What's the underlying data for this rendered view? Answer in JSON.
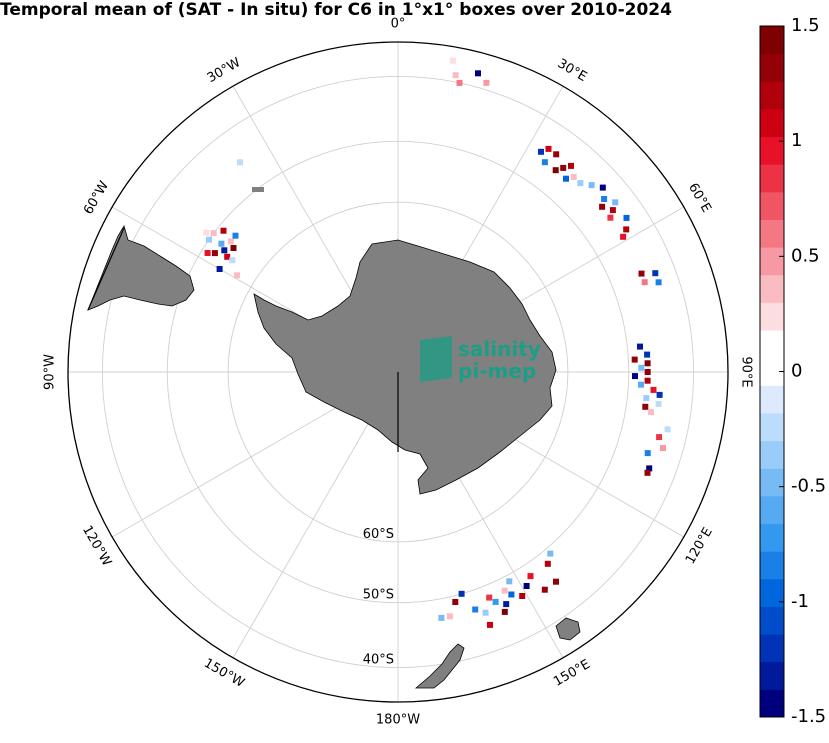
{
  "title": "Temporal mean of (SAT - In situ) for C6 in 1°x1° boxes over 2010-2024",
  "map": {
    "projection": "south-polar-stereographic",
    "outer_latitude": -35,
    "longitude_labels": [
      {
        "lon": 0,
        "text": "0°"
      },
      {
        "lon": 30,
        "text": "30°E"
      },
      {
        "lon": 60,
        "text": "60°E"
      },
      {
        "lon": 90,
        "text": "90°E"
      },
      {
        "lon": 120,
        "text": "120°E"
      },
      {
        "lon": 150,
        "text": "150°E"
      },
      {
        "lon": 180,
        "text": "180°W"
      },
      {
        "lon": -150,
        "text": "150°W"
      },
      {
        "lon": -120,
        "text": "120°W"
      },
      {
        "lon": -90,
        "text": "90°W"
      },
      {
        "lon": -60,
        "text": "60°W"
      },
      {
        "lon": -30,
        "text": "30°W"
      }
    ],
    "latitude_labels": [
      {
        "lat": -60,
        "text": "60°S"
      },
      {
        "lat": -50,
        "text": "50°S"
      },
      {
        "lat": -40,
        "text": "40°S"
      }
    ],
    "land_color": "#808080",
    "grid_color": "#d0d0d0"
  },
  "logo": {
    "line1": "salinity",
    "line2": "pi-mep",
    "color": "#1a9e86"
  },
  "colorbar": {
    "min": -1.5,
    "max": 1.5,
    "ticks": [
      {
        "value": 1.5,
        "label": "1.5"
      },
      {
        "value": 1,
        "label": "1"
      },
      {
        "value": 0.5,
        "label": "0.5"
      },
      {
        "value": 0,
        "label": "0"
      },
      {
        "value": -0.5,
        "label": "-0.5"
      },
      {
        "value": -1,
        "label": "-1"
      },
      {
        "value": -1.5,
        "label": "-1.5"
      }
    ],
    "colors": [
      "#00007f",
      "#001a9b",
      "#0033b5",
      "#004dcc",
      "#0066dd",
      "#1a80e8",
      "#3399ee",
      "#55aaf2",
      "#77bbf5",
      "#99ccf8",
      "#bbdcfa",
      "#dde9fc",
      "#ffffff",
      "#ffffff",
      "#fcdde0",
      "#fabbc1",
      "#f799a2",
      "#f47783",
      "#f05564",
      "#ec3345",
      "#e8112a",
      "#cc0011",
      "#b0000b",
      "#940008",
      "#7f0000"
    ]
  },
  "chart_data": {
    "type": "heatmap",
    "title": "Temporal mean of (SAT - In situ) for C6 in 1°x1° boxes over 2010-2024",
    "value_range": [
      -1.5,
      1.5
    ],
    "points": [
      {
        "lon": -56,
        "lat": -54,
        "v": 1.1
      },
      {
        "lon": -55,
        "lat": -53,
        "v": -1.3
      },
      {
        "lon": -57,
        "lat": -52,
        "v": 1.3
      },
      {
        "lon": -58,
        "lat": -51,
        "v": 0.9
      },
      {
        "lon": -54,
        "lat": -52,
        "v": -0.6
      },
      {
        "lon": -53,
        "lat": -54,
        "v": 1.4
      },
      {
        "lon": -56,
        "lat": -55,
        "v": -0.3
      },
      {
        "lon": -52,
        "lat": -53,
        "v": 0.4
      },
      {
        "lon": -51,
        "lat": -51,
        "v": 1.2
      },
      {
        "lon": -55,
        "lat": -50,
        "v": -0.4
      },
      {
        "lon": -53,
        "lat": -50,
        "v": 0.3
      },
      {
        "lon": -50,
        "lat": -53,
        "v": -0.9
      },
      {
        "lon": -54,
        "lat": -49,
        "v": 0.2
      },
      {
        "lon": -60,
        "lat": -54,
        "v": -1.3
      },
      {
        "lon": -59,
        "lat": -57,
        "v": 0.4
      },
      {
        "lon": -37,
        "lat": -45,
        "v": -0.3
      },
      {
        "lon": 11,
        "lat": -39,
        "v": 0.3
      },
      {
        "lon": 12,
        "lat": -40,
        "v": 0.6
      },
      {
        "lon": 15,
        "lat": -38,
        "v": -1.4
      },
      {
        "lon": 17,
        "lat": -39,
        "v": 0.5
      },
      {
        "lon": 10,
        "lat": -37,
        "v": 0.2
      },
      {
        "lon": 33,
        "lat": -45,
        "v": -1.2
      },
      {
        "lon": 34,
        "lat": -44,
        "v": 1.1
      },
      {
        "lon": 35,
        "lat": -46,
        "v": -0.8
      },
      {
        "lon": 36,
        "lat": -44,
        "v": 1.3
      },
      {
        "lon": 38,
        "lat": -46,
        "v": 1.4
      },
      {
        "lon": 39,
        "lat": -45,
        "v": 1.3
      },
      {
        "lon": 40,
        "lat": -44,
        "v": 1.2
      },
      {
        "lon": 41,
        "lat": -46,
        "v": -1.0
      },
      {
        "lon": 42,
        "lat": -45,
        "v": 0.3
      },
      {
        "lon": 44,
        "lat": -45,
        "v": -0.4
      },
      {
        "lon": 46,
        "lat": -44,
        "v": -0.5
      },
      {
        "lon": 48,
        "lat": -43,
        "v": -1.4
      },
      {
        "lon": 50,
        "lat": -44,
        "v": -0.9
      },
      {
        "lon": 51,
        "lat": -45,
        "v": 1.3
      },
      {
        "lon": 53,
        "lat": -44,
        "v": 1.2
      },
      {
        "lon": 54,
        "lat": -45,
        "v": 0.8
      },
      {
        "lon": 52,
        "lat": -43,
        "v": -0.5
      },
      {
        "lon": 56,
        "lat": -43,
        "v": -1.0
      },
      {
        "lon": 58,
        "lat": -44,
        "v": 1.2
      },
      {
        "lon": 59,
        "lat": -45,
        "v": 0.9
      },
      {
        "lon": 68,
        "lat": -45,
        "v": 1.3
      },
      {
        "lon": 69,
        "lat": -43,
        "v": -1.2
      },
      {
        "lon": 70,
        "lat": -45,
        "v": 0.6
      },
      {
        "lon": 71,
        "lat": -43,
        "v": -0.8
      },
      {
        "lon": 84,
        "lat": -48,
        "v": -1.3
      },
      {
        "lon": 86,
        "lat": -47,
        "v": -1.2
      },
      {
        "lon": 87,
        "lat": -49,
        "v": 1.3
      },
      {
        "lon": 88,
        "lat": -47,
        "v": 1.4
      },
      {
        "lon": 89,
        "lat": -48,
        "v": -0.5
      },
      {
        "lon": 90,
        "lat": -47,
        "v": 1.3
      },
      {
        "lon": 91,
        "lat": -49,
        "v": -1.4
      },
      {
        "lon": 92,
        "lat": -47,
        "v": 1.2
      },
      {
        "lon": 93,
        "lat": -48,
        "v": -0.6
      },
      {
        "lon": 94,
        "lat": -46,
        "v": 0.9
      },
      {
        "lon": 95,
        "lat": -45,
        "v": -1.2
      },
      {
        "lon": 96,
        "lat": -47,
        "v": -0.4
      },
      {
        "lon": 97,
        "lat": -45,
        "v": -0.3
      },
      {
        "lon": 98,
        "lat": -47,
        "v": 1.3
      },
      {
        "lon": 99,
        "lat": -46,
        "v": 0.3
      },
      {
        "lon": 102,
        "lat": -43,
        "v": -0.2
      },
      {
        "lon": 104,
        "lat": -44,
        "v": 0.8
      },
      {
        "lon": 106,
        "lat": -43,
        "v": 0.5
      },
      {
        "lon": 108,
        "lat": -45,
        "v": -0.8
      },
      {
        "lon": 111,
        "lat": -44,
        "v": -1.4
      },
      {
        "lon": 112,
        "lat": -44,
        "v": 1.3
      },
      {
        "lon": 140,
        "lat": -49,
        "v": -0.5
      },
      {
        "lon": 142,
        "lat": -48,
        "v": 1.2
      },
      {
        "lon": 143,
        "lat": -45,
        "v": 1.3
      },
      {
        "lon": 146,
        "lat": -45,
        "v": 1.3
      },
      {
        "lon": 147,
        "lat": -48,
        "v": 1.0
      },
      {
        "lon": 149,
        "lat": -47,
        "v": -1.4
      },
      {
        "lon": 151,
        "lat": -46,
        "v": 1.2
      },
      {
        "lon": 152,
        "lat": -49,
        "v": -0.5
      },
      {
        "lon": 153,
        "lat": -47,
        "v": -1.0
      },
      {
        "lon": 154,
        "lat": -48,
        "v": 0.4
      },
      {
        "lon": 155,
        "lat": -46,
        "v": -1.3
      },
      {
        "lon": 156,
        "lat": -45,
        "v": 1.4
      },
      {
        "lon": 157,
        "lat": -47,
        "v": -0.7
      },
      {
        "lon": 158,
        "lat": -48,
        "v": 0.8
      },
      {
        "lon": 160,
        "lat": -46,
        "v": -0.4
      },
      {
        "lon": 162,
        "lat": -47,
        "v": -0.9
      },
      {
        "lon": 164,
        "lat": -50,
        "v": -1.2
      },
      {
        "lon": 166,
        "lat": -49,
        "v": 1.3
      },
      {
        "lon": 168,
        "lat": -47,
        "v": 0.3
      },
      {
        "lon": 170,
        "lat": -47,
        "v": -0.5
      },
      {
        "lon": 160,
        "lat": -44,
        "v": 1.1
      }
    ]
  }
}
